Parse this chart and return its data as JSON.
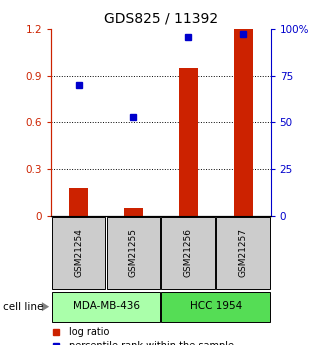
{
  "title": "GDS825 / 11392",
  "samples": [
    "GSM21254",
    "GSM21255",
    "GSM21256",
    "GSM21257"
  ],
  "log_ratio": [
    0.18,
    0.05,
    0.95,
    1.2
  ],
  "percentile_rank": [
    70,
    53,
    96,
    97.5
  ],
  "cell_line_labels": [
    "MDA-MB-436",
    "HCC 1954"
  ],
  "cell_line_groups": [
    [
      0,
      1
    ],
    [
      2,
      3
    ]
  ],
  "cell_line_colors": [
    "#aaffaa",
    "#55dd55"
  ],
  "sample_box_color": "#cccccc",
  "bar_color": "#cc2200",
  "dot_color": "#0000cc",
  "ylim_left": [
    0,
    1.2
  ],
  "ylim_right": [
    0,
    100
  ],
  "yticks_left": [
    0,
    0.3,
    0.6,
    0.9,
    1.2
  ],
  "ytick_labels_left": [
    "0",
    "0.3",
    "0.6",
    "0.9",
    "1.2"
  ],
  "yticks_right": [
    0,
    25,
    50,
    75,
    100
  ],
  "ytick_labels_right": [
    "0",
    "25",
    "50",
    "75",
    "100%"
  ],
  "title_fontsize": 10,
  "axis_fontsize": 7.5,
  "legend_fontsize": 7,
  "tick_fontsize": 7
}
